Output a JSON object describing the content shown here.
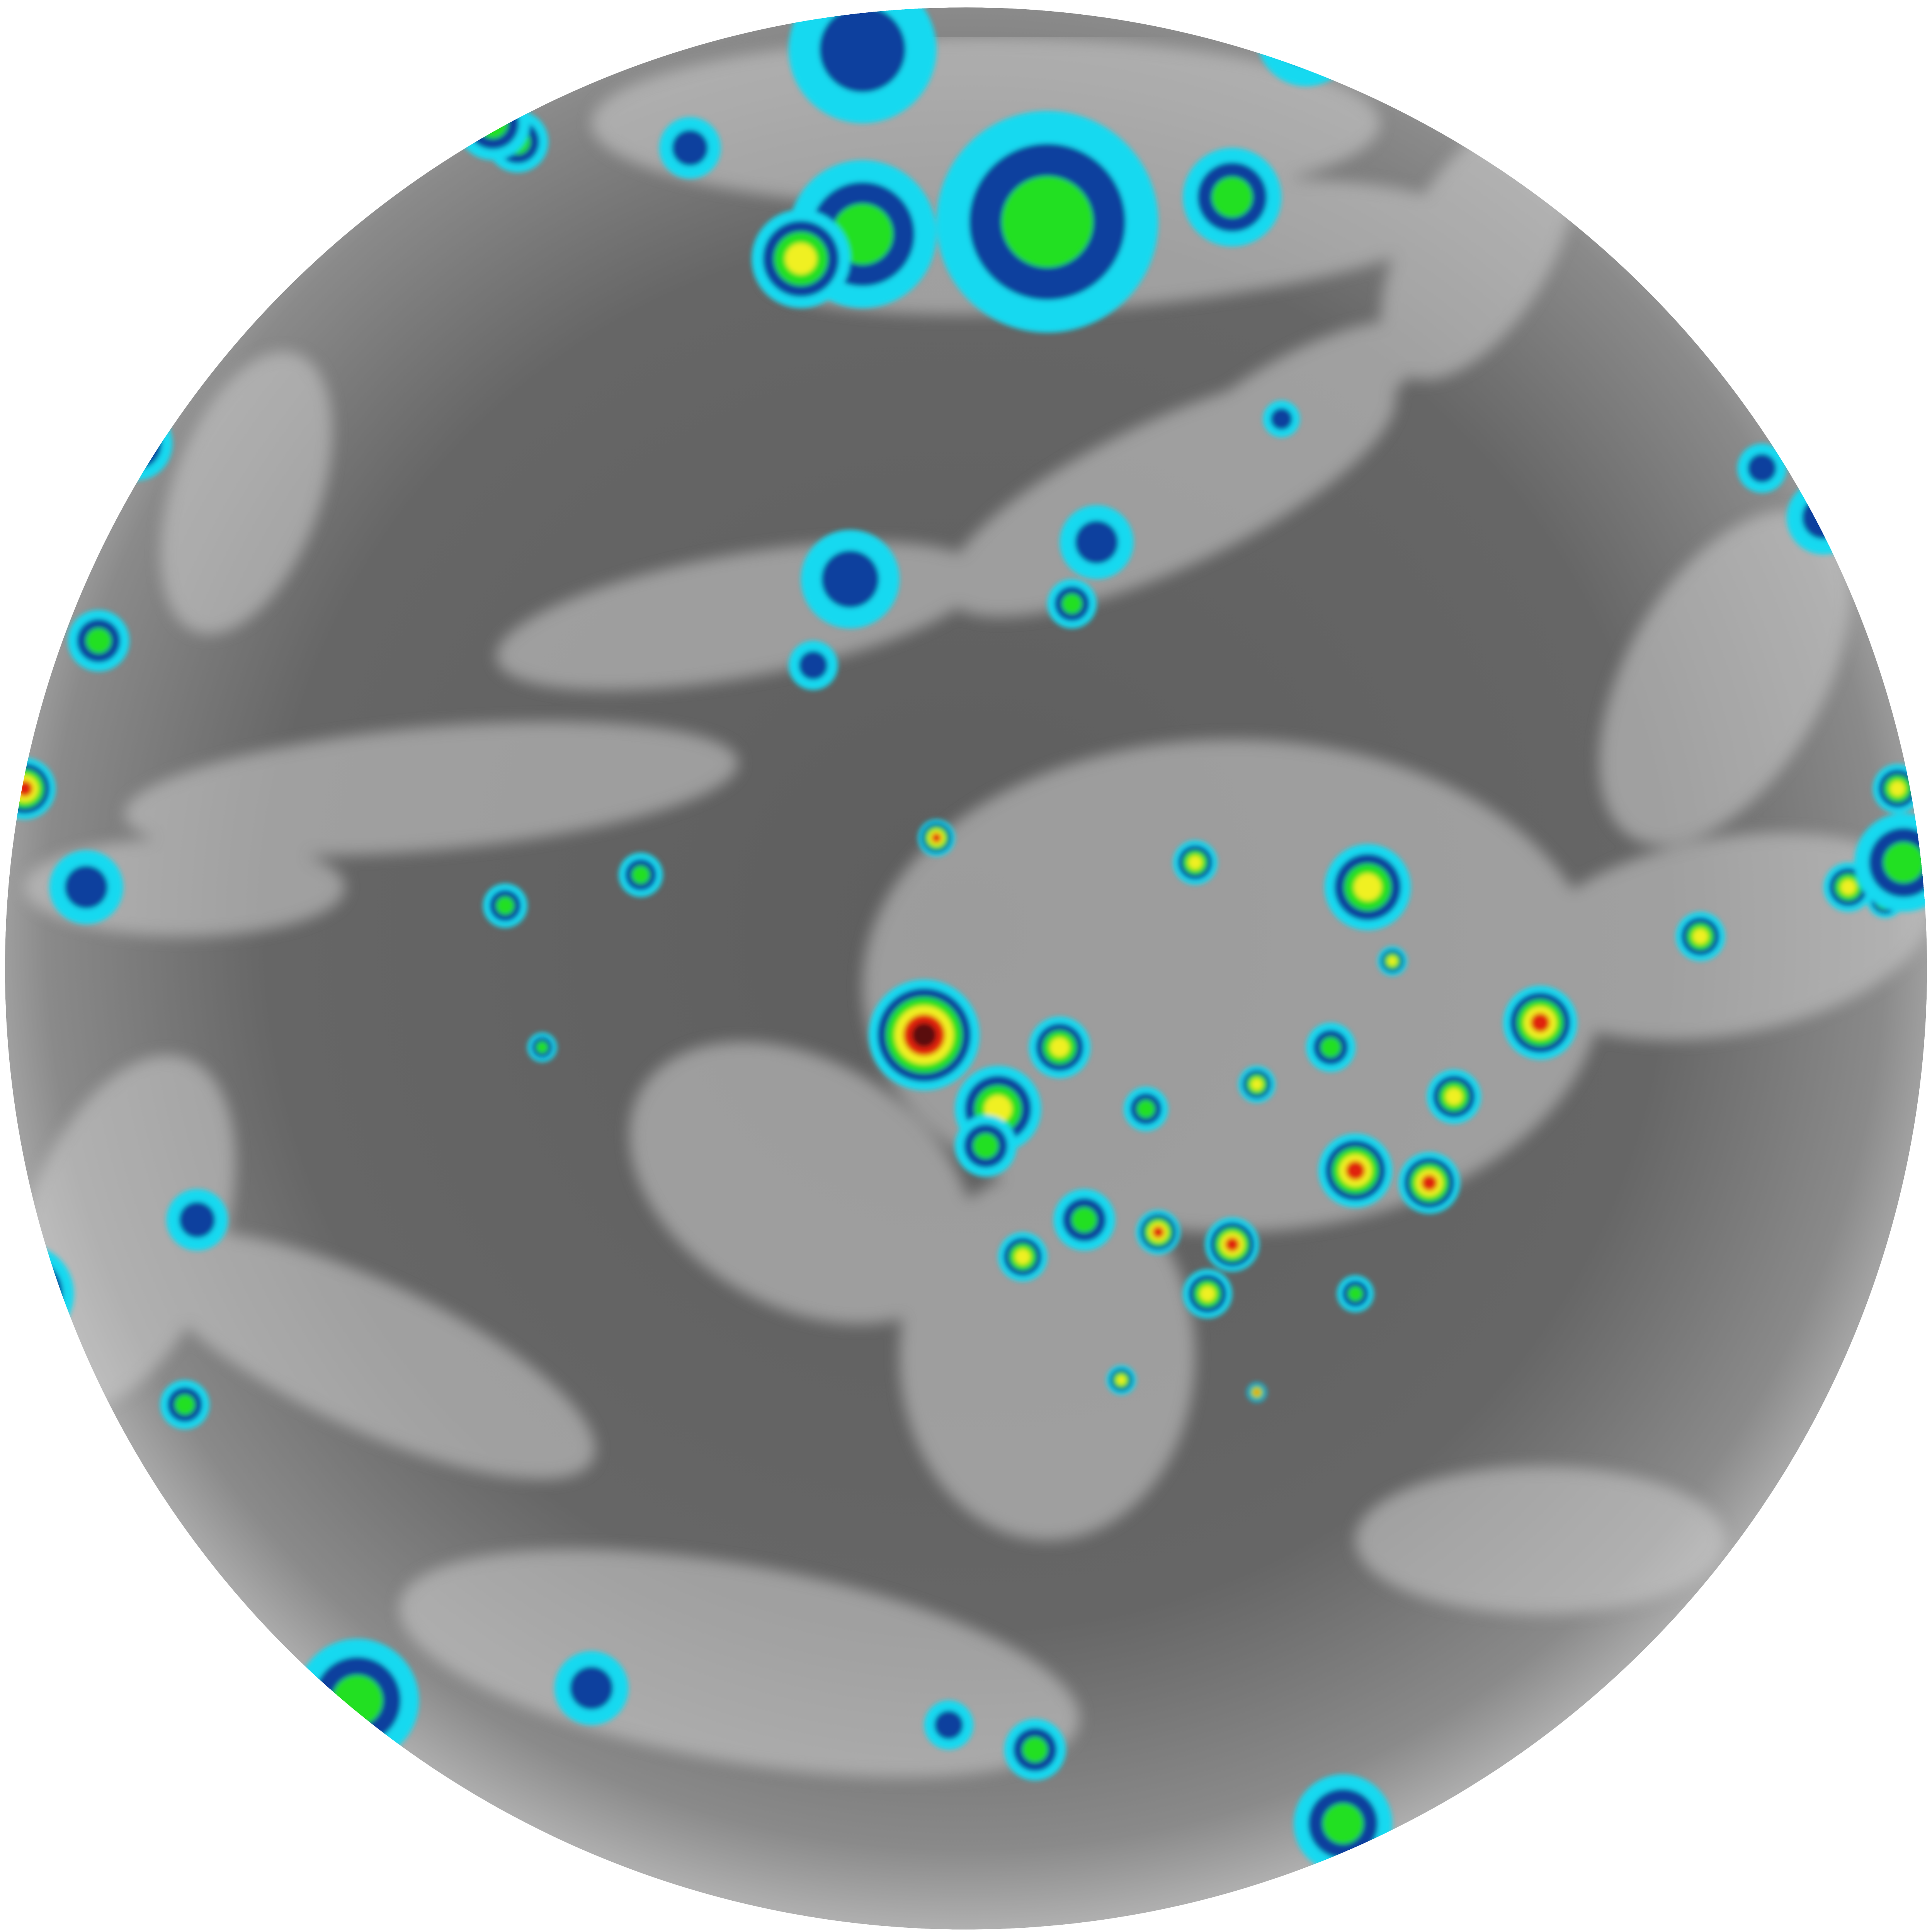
{
  "image": {
    "kind": "full-disk infrared satellite image",
    "background": "#ffffff",
    "colors": {
      "disk_dark": "#4a4a4a",
      "disk_mid": "#6e6e6e",
      "cloud_gray": "#d8d8d8",
      "cold_cyan": "#19d9f0",
      "cold_blue": "#0a3f9e",
      "colder_green": "#22e022",
      "colder_yellow": "#f0f020",
      "coldest_red": "#e02010",
      "coldest_maroon": "#5a0808"
    }
  }
}
